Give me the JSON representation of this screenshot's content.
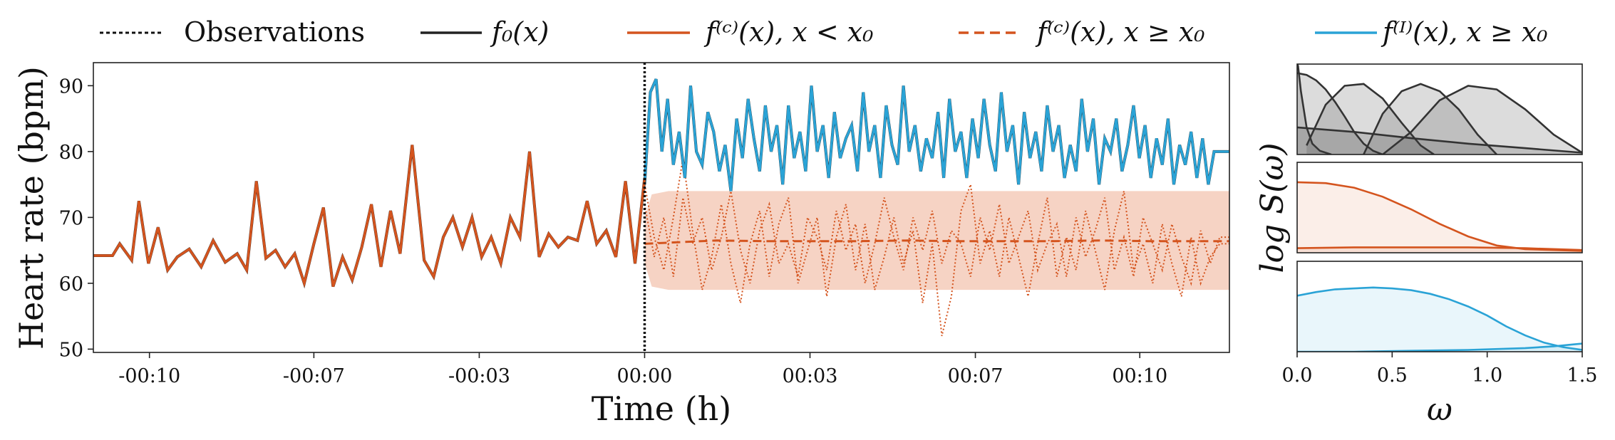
{
  "legend": {
    "position": "top",
    "items": [
      {
        "key": "obs",
        "label": "Observations",
        "color": "#111111",
        "style": "dotted"
      },
      {
        "key": "f0",
        "label": "f₀(x)",
        "color": "#222222",
        "style": "solid"
      },
      {
        "key": "fc_before",
        "label": "f⁽ᶜ⁾(x), x < x₀",
        "color": "#d4541e",
        "style": "solid"
      },
      {
        "key": "fc_after",
        "label": "f⁽ᶜ⁾(x), x ≥ x₀",
        "color": "#d4541e",
        "style": "dashed"
      },
      {
        "key": "fi_after",
        "label": "f⁽ᴵ⁾(x), x ≥ x₀",
        "color": "#2aa3d6",
        "style": "solid"
      }
    ]
  },
  "chart_data": [
    {
      "type": "line",
      "name": "main",
      "xlabel": "Time (h)",
      "ylabel": "Heart rate (bpm)",
      "xlim": [
        -11.5,
        12.2
      ],
      "ylim": [
        49.5,
        93.5
      ],
      "grid": false,
      "xticks": [
        {
          "value": -10.33,
          "label": "-00:10"
        },
        {
          "value": -6.9,
          "label": "-00:07"
        },
        {
          "value": -3.45,
          "label": "-00:03"
        },
        {
          "value": 0,
          "label": "00:00"
        },
        {
          "value": 3.45,
          "label": "00:03"
        },
        {
          "value": 6.9,
          "label": "00:07"
        },
        {
          "value": 10.33,
          "label": "00:10"
        }
      ],
      "yticks": [
        50,
        60,
        70,
        80,
        90
      ],
      "colors": {
        "black": "#222222",
        "orange": "#d4541e",
        "blue": "#2aa3d6",
        "band": "#f6d3c4"
      },
      "vline_x": 0,
      "series": {
        "f0_past": {
          "x": [
            -11.5,
            -11.1,
            -10.95,
            -10.7,
            -10.55,
            -10.35,
            -10.15,
            -9.95,
            -9.75,
            -9.5,
            -9.25,
            -9.0,
            -8.75,
            -8.5,
            -8.3,
            -8.1,
            -7.9,
            -7.7,
            -7.5,
            -7.3,
            -7.1,
            -6.9,
            -6.7,
            -6.5,
            -6.3,
            -6.1,
            -5.9,
            -5.7,
            -5.5,
            -5.3,
            -5.1,
            -4.85,
            -4.6,
            -4.4,
            -4.2,
            -4.0,
            -3.8,
            -3.6,
            -3.4,
            -3.2,
            -3.0,
            -2.8,
            -2.6,
            -2.4,
            -2.2,
            -2.0,
            -1.8,
            -1.6,
            -1.4,
            -1.2,
            -1.0,
            -0.8,
            -0.6,
            -0.4,
            -0.2,
            0.0
          ],
          "y": [
            64.2,
            64.2,
            66,
            63.5,
            72.5,
            63,
            68.5,
            62,
            64,
            65.2,
            62.5,
            66.5,
            63.2,
            64.5,
            62,
            75.5,
            63.8,
            65,
            62.5,
            64.5,
            60,
            66,
            71.5,
            59.5,
            64,
            60.5,
            65.5,
            72,
            62.5,
            71,
            64.5,
            81,
            63.5,
            61,
            67,
            70,
            65.5,
            70,
            64,
            67,
            63,
            70,
            67,
            80,
            64,
            67.5,
            65.5,
            67,
            66.5,
            72.5,
            66,
            68,
            64,
            75.5,
            63,
            76
          ]
        },
        "f0_future": {
          "x": [
            0.0,
            0.12,
            0.24,
            0.36,
            0.48,
            0.6,
            0.72,
            0.84,
            0.96,
            1.08,
            1.2,
            1.32,
            1.44,
            1.56,
            1.68,
            1.8,
            1.92,
            2.04,
            2.16,
            2.28,
            2.4,
            2.52,
            2.64,
            2.76,
            2.88,
            3.0,
            3.12,
            3.24,
            3.36,
            3.48,
            3.6,
            3.72,
            3.84,
            3.96,
            4.08,
            4.2,
            4.32,
            4.44,
            4.56,
            4.68,
            4.8,
            4.92,
            5.04,
            5.16,
            5.28,
            5.4,
            5.52,
            5.64,
            5.76,
            5.88,
            6.0,
            6.12,
            6.24,
            6.36,
            6.48,
            6.6,
            6.72,
            6.84,
            6.96,
            7.08,
            7.2,
            7.32,
            7.44,
            7.56,
            7.68,
            7.8,
            7.92,
            8.04,
            8.16,
            8.28,
            8.4,
            8.52,
            8.64,
            8.76,
            8.88,
            9.0,
            9.12,
            9.24,
            9.36,
            9.48,
            9.6,
            9.72,
            9.84,
            9.96,
            10.08,
            10.2,
            10.32,
            10.44,
            10.56,
            10.68,
            10.8,
            10.92,
            11.04,
            11.16,
            11.28,
            11.4,
            11.52,
            11.64,
            11.76,
            11.88,
            12.0,
            12.2
          ],
          "y": [
            75,
            89,
            91,
            80,
            88,
            78,
            83,
            76,
            90,
            80,
            78,
            86,
            83,
            77,
            81,
            74,
            85,
            79,
            88,
            82,
            77,
            87,
            80,
            84,
            75,
            87,
            79,
            83,
            77,
            90,
            80,
            84,
            76,
            86,
            79,
            82,
            84,
            77,
            89,
            80,
            84,
            76,
            87,
            81,
            78,
            90,
            80,
            84,
            77,
            82,
            79,
            86,
            76,
            88,
            80,
            83,
            76,
            85,
            79,
            88,
            81,
            77,
            89,
            80,
            84,
            75,
            86,
            79,
            83,
            77,
            87,
            80,
            84,
            76,
            81,
            77,
            88,
            80,
            85,
            75,
            82,
            80,
            85,
            77,
            81,
            87,
            79,
            84,
            76,
            82,
            78,
            85,
            75,
            81,
            78,
            83,
            76,
            82,
            75,
            80,
            80,
            80
          ]
        },
        "fc_mean_future": {
          "x": [
            0,
            0.6,
            1.5,
            2.5,
            3.5,
            4.5,
            5.5,
            6.5,
            7.5,
            8.5,
            9.5,
            10.5,
            11.5,
            12.2
          ],
          "y": [
            66,
            66.2,
            66.5,
            66.4,
            66.4,
            66.4,
            66.5,
            66.4,
            66.4,
            66.4,
            66.5,
            66.4,
            66.4,
            66.4
          ]
        },
        "fc_band": {
          "x": [
            0,
            0.15,
            0.5,
            1.5,
            3,
            5,
            7,
            9,
            11,
            12.2
          ],
          "upper": [
            70,
            73.5,
            74,
            74,
            74,
            74,
            74,
            74,
            74,
            74
          ],
          "lower": [
            63,
            59.5,
            59,
            59,
            59,
            59,
            59,
            59,
            59,
            59
          ]
        },
        "fc_samples": [
          {
            "x": [
              0,
              0.2,
              0.4,
              0.6,
              0.8,
              1.0,
              1.2,
              1.4,
              1.6,
              1.8,
              2.0,
              2.2,
              2.4,
              2.6,
              2.8,
              3.0,
              3.2,
              3.4,
              3.6,
              3.8,
              4.0,
              4.2,
              4.4,
              4.6,
              4.8,
              5.0,
              5.2,
              5.4,
              5.6,
              5.8,
              6.0,
              6.2,
              6.4,
              6.6,
              6.8,
              7.0,
              7.2,
              7.4,
              7.6,
              7.8,
              8.0,
              8.2,
              8.4,
              8.6,
              8.8,
              9.0,
              9.2,
              9.4,
              9.6,
              9.8,
              10.0,
              10.2,
              10.4,
              10.6,
              10.8,
              11.0,
              11.2,
              11.4,
              11.6,
              11.8,
              12.0,
              12.2
            ],
            "y": [
              75,
              67,
              62,
              70,
              79,
              68,
              59,
              64,
              72,
              63,
              57,
              66,
              71,
              61,
              69,
              73,
              60,
              65,
              70,
              58,
              67,
              72,
              62,
              69,
              59,
              64,
              70,
              63,
              68,
              57,
              66,
              52,
              58,
              71,
              75,
              63,
              68,
              61,
              70,
              64,
              58,
              66,
              73,
              61,
              67,
              62,
              71,
              65,
              59,
              68,
              74,
              62,
              66,
              60,
              69,
              63,
              58,
              67,
              60,
              64,
              66,
              66
            ]
          },
          {
            "x": [
              0,
              0.2,
              0.4,
              0.6,
              0.8,
              1.0,
              1.2,
              1.4,
              1.6,
              1.8,
              2.0,
              2.2,
              2.4,
              2.6,
              2.8,
              3.0,
              3.2,
              3.4,
              3.6,
              3.8,
              4.0,
              4.2,
              4.4,
              4.6,
              4.8,
              5.0,
              5.2,
              5.4,
              5.6,
              5.8,
              6.0,
              6.2,
              6.4,
              6.6,
              6.8,
              7.0,
              7.2,
              7.4,
              7.6,
              7.8,
              8.0,
              8.2,
              8.4,
              8.6,
              8.8,
              9.0,
              9.2,
              9.4,
              9.6,
              9.8,
              10.0,
              10.2,
              10.4,
              10.6,
              10.8,
              11.0,
              11.2,
              11.4,
              11.6,
              11.8,
              12.0,
              12.2
            ],
            "y": [
              72,
              64,
              70,
              61,
              73,
              66,
              70,
              62,
              67,
              74,
              65,
              60,
              68,
              72,
              63,
              66,
              61,
              70,
              67,
              62,
              71,
              65,
              69,
              60,
              66,
              73,
              67,
              62,
              70,
              65,
              71,
              63,
              68,
              66,
              61,
              70,
              65,
              72,
              63,
              67,
              71,
              62,
              66,
              69,
              61,
              70,
              64,
              68,
              73,
              62,
              67,
              61,
              70,
              66,
              62,
              69,
              64,
              60,
              68,
              63,
              67,
              67
            ]
          }
        ]
      }
    },
    {
      "type": "area",
      "name": "spectrum-f0",
      "xlim": [
        0,
        1.5
      ],
      "series": [
        {
          "x": [
            0,
            0.005,
            0.02,
            0.05,
            0.08,
            0.12,
            0.18
          ],
          "y": [
            1,
            0.98,
            0.7,
            0.3,
            0.12,
            0.04,
            0
          ]
        },
        {
          "x": [
            0,
            0.05,
            0.1,
            0.15,
            0.2,
            0.25,
            0.3,
            0.35,
            0.4,
            0.45
          ],
          "y": [
            0.9,
            0.88,
            0.82,
            0.72,
            0.58,
            0.42,
            0.25,
            0.12,
            0.04,
            0
          ]
        },
        {
          "x": [
            0.05,
            0.15,
            0.25,
            0.35,
            0.45,
            0.55,
            0.65,
            0.72
          ],
          "y": [
            0.1,
            0.55,
            0.76,
            0.78,
            0.62,
            0.35,
            0.1,
            0
          ]
        },
        {
          "x": [
            0.35,
            0.45,
            0.55,
            0.65,
            0.75,
            0.85,
            0.95,
            1.05
          ],
          "y": [
            0,
            0.45,
            0.7,
            0.78,
            0.7,
            0.5,
            0.22,
            0
          ]
        },
        {
          "x": [
            0.45,
            0.6,
            0.75,
            0.9,
            1.05,
            1.2,
            1.35,
            1.5
          ],
          "y": [
            0,
            0.25,
            0.6,
            0.76,
            0.72,
            0.5,
            0.22,
            0.02
          ]
        },
        {
          "x": [
            0,
            0.3,
            0.6,
            0.9,
            1.2,
            1.5
          ],
          "y": [
            0.3,
            0.25,
            0.18,
            0.12,
            0.07,
            0.02
          ]
        }
      ]
    },
    {
      "type": "area",
      "name": "spectrum-fc",
      "xlim": [
        0,
        1.5
      ],
      "ylabel": "log S(ω)",
      "series": [
        {
          "x": [
            0,
            0.15,
            0.3,
            0.45,
            0.6,
            0.75,
            0.9,
            1.05,
            1.2,
            1.35,
            1.5
          ],
          "y": [
            0.78,
            0.77,
            0.72,
            0.62,
            0.48,
            0.32,
            0.18,
            0.08,
            0.04,
            0.03,
            0.02
          ]
        },
        {
          "x": [
            0,
            0.3,
            0.6,
            0.9,
            1.2,
            1.5
          ],
          "y": [
            0.05,
            0.06,
            0.06,
            0.06,
            0.05,
            0.03
          ]
        }
      ]
    },
    {
      "type": "area",
      "name": "spectrum-fi",
      "xlim": [
        0,
        1.5
      ],
      "xlabel": "ω",
      "xticks": [
        0.0,
        0.5,
        1.0,
        1.5
      ],
      "series": [
        {
          "x": [
            0,
            0.1,
            0.2,
            0.3,
            0.4,
            0.5,
            0.6,
            0.7,
            0.8,
            0.9,
            1.0,
            1.1,
            1.2,
            1.3,
            1.4,
            1.5
          ],
          "y": [
            0.62,
            0.66,
            0.69,
            0.7,
            0.71,
            0.7,
            0.68,
            0.64,
            0.58,
            0.5,
            0.4,
            0.28,
            0.18,
            0.1,
            0.05,
            0.02
          ]
        },
        {
          "x": [
            0,
            0.3,
            0.6,
            0.9,
            1.2,
            1.35,
            1.45,
            1.5
          ],
          "y": [
            0,
            0,
            0.01,
            0.02,
            0.04,
            0.06,
            0.08,
            0.09
          ]
        }
      ]
    }
  ]
}
